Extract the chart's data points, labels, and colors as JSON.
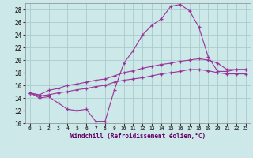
{
  "xlabel": "Windchill (Refroidissement éolien,°C)",
  "bg_color": "#cce8e8",
  "grid_color": "#aacccc",
  "line_color": "#993399",
  "xlim": [
    -0.5,
    23.5
  ],
  "ylim": [
    10,
    29
  ],
  "xticks": [
    0,
    1,
    2,
    3,
    4,
    5,
    6,
    7,
    8,
    9,
    10,
    11,
    12,
    13,
    14,
    15,
    16,
    17,
    18,
    19,
    20,
    21,
    22,
    23
  ],
  "yticks": [
    10,
    12,
    14,
    16,
    18,
    20,
    22,
    24,
    26,
    28
  ],
  "line1_x": [
    0,
    1,
    2,
    3,
    4,
    5,
    6,
    7,
    8,
    9,
    10,
    11,
    12,
    13,
    14,
    15,
    16,
    17,
    18,
    19,
    20,
    21,
    22,
    23
  ],
  "line1_y": [
    14.8,
    14.0,
    14.2,
    13.2,
    12.2,
    12.0,
    12.2,
    10.3,
    10.3,
    15.3,
    19.5,
    21.5,
    24.0,
    25.5,
    26.5,
    28.5,
    28.8,
    27.8,
    25.2,
    20.5,
    18.2,
    18.2,
    18.5,
    18.5
  ],
  "line2_x": [
    0,
    1,
    2,
    3,
    4,
    5,
    6,
    7,
    8,
    9,
    10,
    11,
    12,
    13,
    14,
    15,
    16,
    17,
    18,
    19,
    20,
    21,
    22,
    23
  ],
  "line2_y": [
    14.8,
    14.5,
    15.2,
    15.5,
    16.0,
    16.2,
    16.5,
    16.8,
    17.0,
    17.5,
    18.0,
    18.3,
    18.7,
    19.0,
    19.3,
    19.5,
    19.8,
    20.0,
    20.2,
    20.0,
    19.5,
    18.5,
    18.5,
    18.5
  ],
  "line3_x": [
    0,
    1,
    2,
    3,
    4,
    5,
    6,
    7,
    8,
    9,
    10,
    11,
    12,
    13,
    14,
    15,
    16,
    17,
    18,
    19,
    20,
    21,
    22,
    23
  ],
  "line3_y": [
    14.8,
    14.3,
    14.5,
    14.8,
    15.0,
    15.3,
    15.5,
    15.8,
    16.0,
    16.5,
    16.8,
    17.0,
    17.2,
    17.5,
    17.8,
    18.0,
    18.2,
    18.5,
    18.5,
    18.3,
    18.0,
    17.8,
    17.8,
    17.8
  ]
}
